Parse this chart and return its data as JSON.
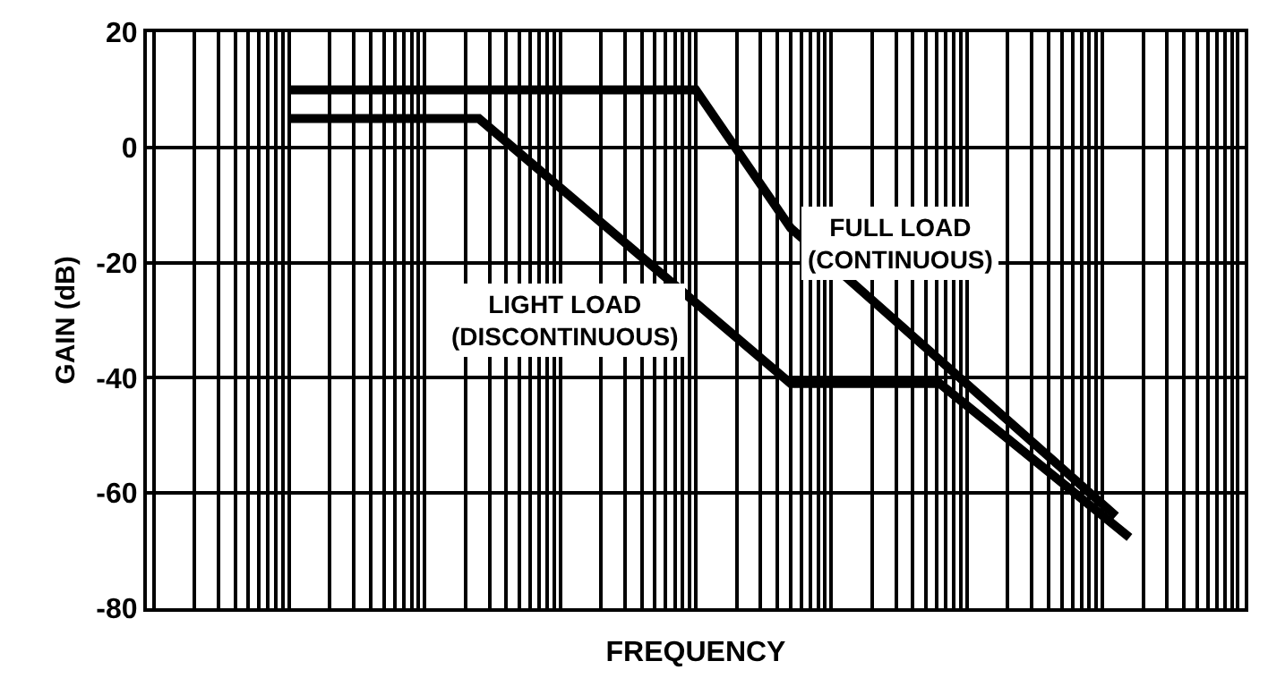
{
  "chart_data": {
    "type": "line",
    "xlabel": "FREQUENCY",
    "ylabel": "GAIN (dB)",
    "categories": [
      null,
      null,
      null,
      null,
      null,
      null,
      null,
      null,
      null,
      null,
      null,
      null,
      null,
      null,
      null,
      null,
      null,
      null,
      null,
      null,
      null,
      null,
      null,
      null,
      null,
      null,
      null,
      null,
      null,
      null,
      null,
      null,
      null,
      null,
      null,
      null,
      null,
      null,
      null,
      null,
      null,
      null,
      null,
      null,
      null,
      null,
      null,
      null,
      null,
      null,
      null,
      null,
      null,
      null,
      null,
      null,
      null,
      null,
      null,
      null,
      null,
      null,
      null,
      null,
      null,
      null,
      null,
      null,
      null,
      null,
      null,
      null,
      null,
      null,
      null,
      null,
      null,
      null,
      null,
      null,
      null
    ],
    "ylim": [
      -80,
      20
    ],
    "yticks": [
      -80,
      -60,
      -40,
      -20,
      0,
      20
    ],
    "grid": true,
    "marker": "none",
    "line_style": "solid",
    "series": [
      {
        "name": "FULL LOAD\n(CONTINUOUS)",
        "color": "#000000",
        "values": [
          null,
          null,
          null,
          null,
          null,
          null,
          null,
          null,
          null,
          null,
          10,
          null,
          null,
          null,
          null,
          null,
          null,
          null,
          null,
          null,
          null,
          null,
          null,
          null,
          null,
          null,
          null,
          null,
          null,
          null,
          null,
          null,
          null,
          null,
          null,
          null,
          null,
          null,
          null,
          null,
          10,
          null,
          null,
          null,
          null,
          null,
          null,
          -14,
          null,
          null,
          null,
          null,
          null,
          null,
          null,
          null,
          null,
          null,
          null,
          null,
          null,
          null,
          null,
          null,
          null,
          null,
          null,
          null,
          null,
          null,
          null,
          -64,
          null,
          null,
          null,
          null,
          null,
          null,
          null,
          null,
          null
        ]
      },
      {
        "name": "LIGHT LOAD\n(DISCONTINUOUS)",
        "color": "#000000",
        "values": [
          null,
          null,
          null,
          null,
          null,
          null,
          null,
          null,
          null,
          null,
          5,
          null,
          null,
          null,
          null,
          null,
          null,
          null,
          null,
          null,
          null,
          null,
          null,
          null,
          5,
          null,
          null,
          null,
          null,
          null,
          null,
          null,
          null,
          null,
          null,
          null,
          null,
          null,
          null,
          null,
          null,
          null,
          null,
          null,
          null,
          null,
          null,
          -41,
          null,
          null,
          null,
          null,
          null,
          null,
          null,
          null,
          null,
          null,
          -41,
          null,
          null,
          null,
          null,
          null,
          null,
          null,
          null,
          null,
          null,
          null,
          null,
          null,
          -67.7,
          null,
          null,
          null,
          null,
          null,
          null,
          null,
          null
        ]
      }
    ]
  }
}
